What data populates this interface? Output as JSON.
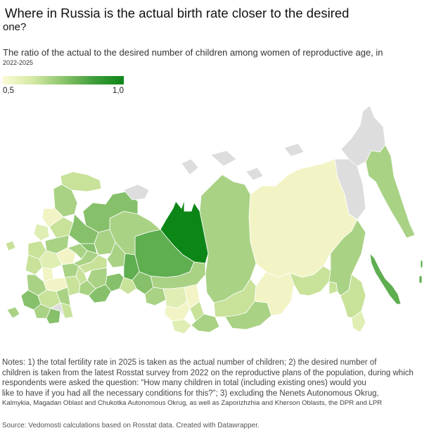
{
  "title": {
    "line1": "Where in Russia is the actual birth rate closer to the desired",
    "line2": "one?"
  },
  "subtitle": {
    "line1": "The ratio of the actual to the desired number of children among women of reproductive age, in",
    "line2": "2022-2025"
  },
  "legend": {
    "min_label": "0,5",
    "max_label": "1,0",
    "min_value": 0.5,
    "max_value": 1.0,
    "color_low": "#fbfbd4",
    "color_high": "#0d8618",
    "no_data_color": "#dddddd"
  },
  "map_colors": {
    "very_low": "#f2f4c6",
    "low": "#dfeeb3",
    "mid_low": "#c8e29a",
    "mid": "#a9d285",
    "mid_high": "#86c06b",
    "high": "#5fae50",
    "very_high": "#0d8618",
    "no_data": "#dddddd",
    "border": "#ffffff"
  },
  "notes": {
    "line1": "Notes: 1) the total fertility rate in 2025 is taken as the actual number of children; 2) the desired number of",
    "line2": "children is taken from the latest Rosstat survey from 2022 on the reproductive plans of the population, during which",
    "line3": "respondents were asked the question: “How many children in total (including existing ones) would you",
    "line4": "like to have if you had all the necessary conditions for this?”; 3) excluding the Nenets Autonomous Okrug,",
    "line5": "Kalmykia, Magadan Oblast and Chukotka Autonomous Okrug, as well as Zaporizhzhia and Kherson Oblasts, the DPR and LPR"
  },
  "source": "Source: Vedomosti calculations based on Rosstat data. Created with Datawrapper."
}
